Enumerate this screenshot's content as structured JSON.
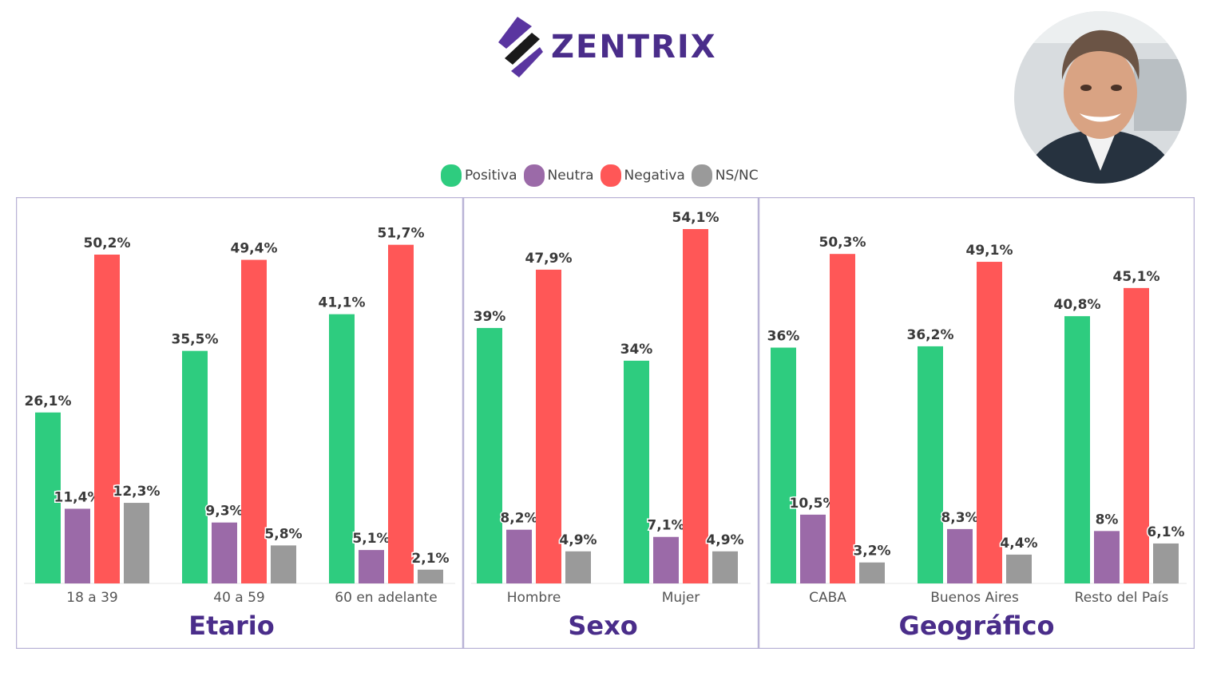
{
  "brand": {
    "name": "ZENTRIX",
    "color": "#4a2d8a"
  },
  "legend": [
    {
      "label": "Positiva",
      "color": "#2ecc7f"
    },
    {
      "label": "Neutra",
      "color": "#9b6aa8"
    },
    {
      "label": "Negativa",
      "color": "#ff5757"
    },
    {
      "label": "NS/NC",
      "color": "#9a9a9a"
    }
  ],
  "chart_data": [
    {
      "type": "bar",
      "title": "Etario",
      "categories": [
        "18 a 39",
        "40 a 59",
        "60 en adelante"
      ],
      "series": [
        {
          "name": "Positiva",
          "values": [
            26.1,
            35.5,
            41.1
          ],
          "labels": [
            "26,1%",
            "35,5%",
            "41,1%"
          ]
        },
        {
          "name": "Neutra",
          "values": [
            11.4,
            9.3,
            5.1
          ],
          "labels": [
            "11,4%",
            "9,3%",
            "5,1%"
          ]
        },
        {
          "name": "Negativa",
          "values": [
            50.2,
            49.4,
            51.7
          ],
          "labels": [
            "50,2%",
            "49,4%",
            "51,7%"
          ]
        },
        {
          "name": "NS/NC",
          "values": [
            12.3,
            5.8,
            2.1
          ],
          "labels": [
            "12,3%",
            "5,8%",
            "2,1%"
          ]
        }
      ],
      "ylim": [
        0,
        54.1
      ]
    },
    {
      "type": "bar",
      "title": "Sexo",
      "categories": [
        "Hombre",
        "Mujer"
      ],
      "series": [
        {
          "name": "Positiva",
          "values": [
            39,
            34
          ],
          "labels": [
            "39%",
            "34%"
          ]
        },
        {
          "name": "Neutra",
          "values": [
            8.2,
            7.1
          ],
          "labels": [
            "8,2%",
            "7,1%"
          ]
        },
        {
          "name": "Negativa",
          "values": [
            47.9,
            54.1
          ],
          "labels": [
            "47,9%",
            "54,1%"
          ]
        },
        {
          "name": "NS/NC",
          "values": [
            4.9,
            4.9
          ],
          "labels": [
            "4,9%",
            "4,9%"
          ]
        }
      ],
      "ylim": [
        0,
        54.1
      ]
    },
    {
      "type": "bar",
      "title": "Geográfico",
      "categories": [
        "CABA",
        "Buenos Aires",
        "Resto del País"
      ],
      "series": [
        {
          "name": "Positiva",
          "values": [
            36,
            36.2,
            40.8
          ],
          "labels": [
            "36%",
            "36,2%",
            "40,8%"
          ]
        },
        {
          "name": "Neutra",
          "values": [
            10.5,
            8.3,
            8
          ],
          "labels": [
            "10,5%",
            "8,3%",
            "8%"
          ]
        },
        {
          "name": "Negativa",
          "values": [
            50.3,
            49.1,
            45.1
          ],
          "labels": [
            "50,3%",
            "49,1%",
            "45,1%"
          ]
        },
        {
          "name": "NS/NC",
          "values": [
            3.2,
            4.4,
            6.1
          ],
          "labels": [
            "3,2%",
            "4,4%",
            "6,1%"
          ]
        }
      ],
      "ylim": [
        0,
        54.1
      ]
    }
  ]
}
